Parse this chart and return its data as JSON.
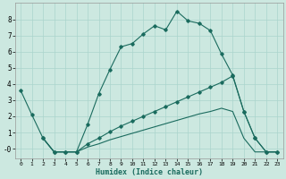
{
  "xlabel": "Humidex (Indice chaleur)",
  "bg_color": "#cce8e0",
  "grid_color": "#aad4cc",
  "line_color": "#1a6b5e",
  "xlim": [
    -0.5,
    23.5
  ],
  "ylim": [
    -0.6,
    9.0
  ],
  "xticks": [
    0,
    1,
    2,
    3,
    4,
    5,
    6,
    7,
    8,
    9,
    10,
    11,
    12,
    13,
    14,
    15,
    16,
    17,
    18,
    19,
    20,
    21,
    22,
    23
  ],
  "yticks": [
    0,
    1,
    2,
    3,
    4,
    5,
    6,
    7,
    8
  ],
  "ytick_labels": [
    "-0",
    "1",
    "2",
    "3",
    "4",
    "5",
    "6",
    "7",
    "8"
  ],
  "series1_x": [
    0,
    1,
    2,
    3,
    4,
    5,
    6,
    7,
    8,
    9,
    10,
    11,
    12,
    13,
    14,
    15,
    16,
    17,
    18,
    19,
    20,
    21,
    22,
    23
  ],
  "series1_y": [
    3.6,
    2.1,
    0.65,
    -0.2,
    -0.2,
    -0.2,
    1.5,
    3.4,
    4.9,
    6.3,
    6.5,
    7.1,
    7.6,
    7.35,
    8.5,
    7.9,
    7.75,
    7.3,
    5.85,
    4.55,
    2.3,
    0.65,
    -0.2,
    -0.2
  ],
  "series2_x": [
    2,
    3,
    4,
    5,
    6,
    7,
    8,
    9,
    10,
    11,
    12,
    13,
    14,
    15,
    16,
    17,
    18,
    19,
    20,
    21,
    22,
    23
  ],
  "series2_y": [
    0.65,
    -0.2,
    -0.2,
    -0.2,
    0.3,
    0.65,
    1.05,
    1.4,
    1.7,
    2.0,
    2.3,
    2.6,
    2.9,
    3.2,
    3.5,
    3.8,
    4.1,
    4.5,
    2.3,
    0.65,
    -0.2,
    -0.2
  ],
  "series3_x": [
    2,
    3,
    4,
    5,
    6,
    7,
    8,
    9,
    10,
    11,
    12,
    13,
    14,
    15,
    16,
    17,
    18,
    19,
    20,
    21,
    22,
    23
  ],
  "series3_y": [
    0.65,
    -0.2,
    -0.2,
    -0.2,
    0.1,
    0.3,
    0.55,
    0.75,
    0.95,
    1.15,
    1.35,
    1.55,
    1.75,
    1.95,
    2.15,
    2.3,
    2.5,
    2.3,
    0.65,
    -0.2,
    -0.2,
    -0.2
  ]
}
